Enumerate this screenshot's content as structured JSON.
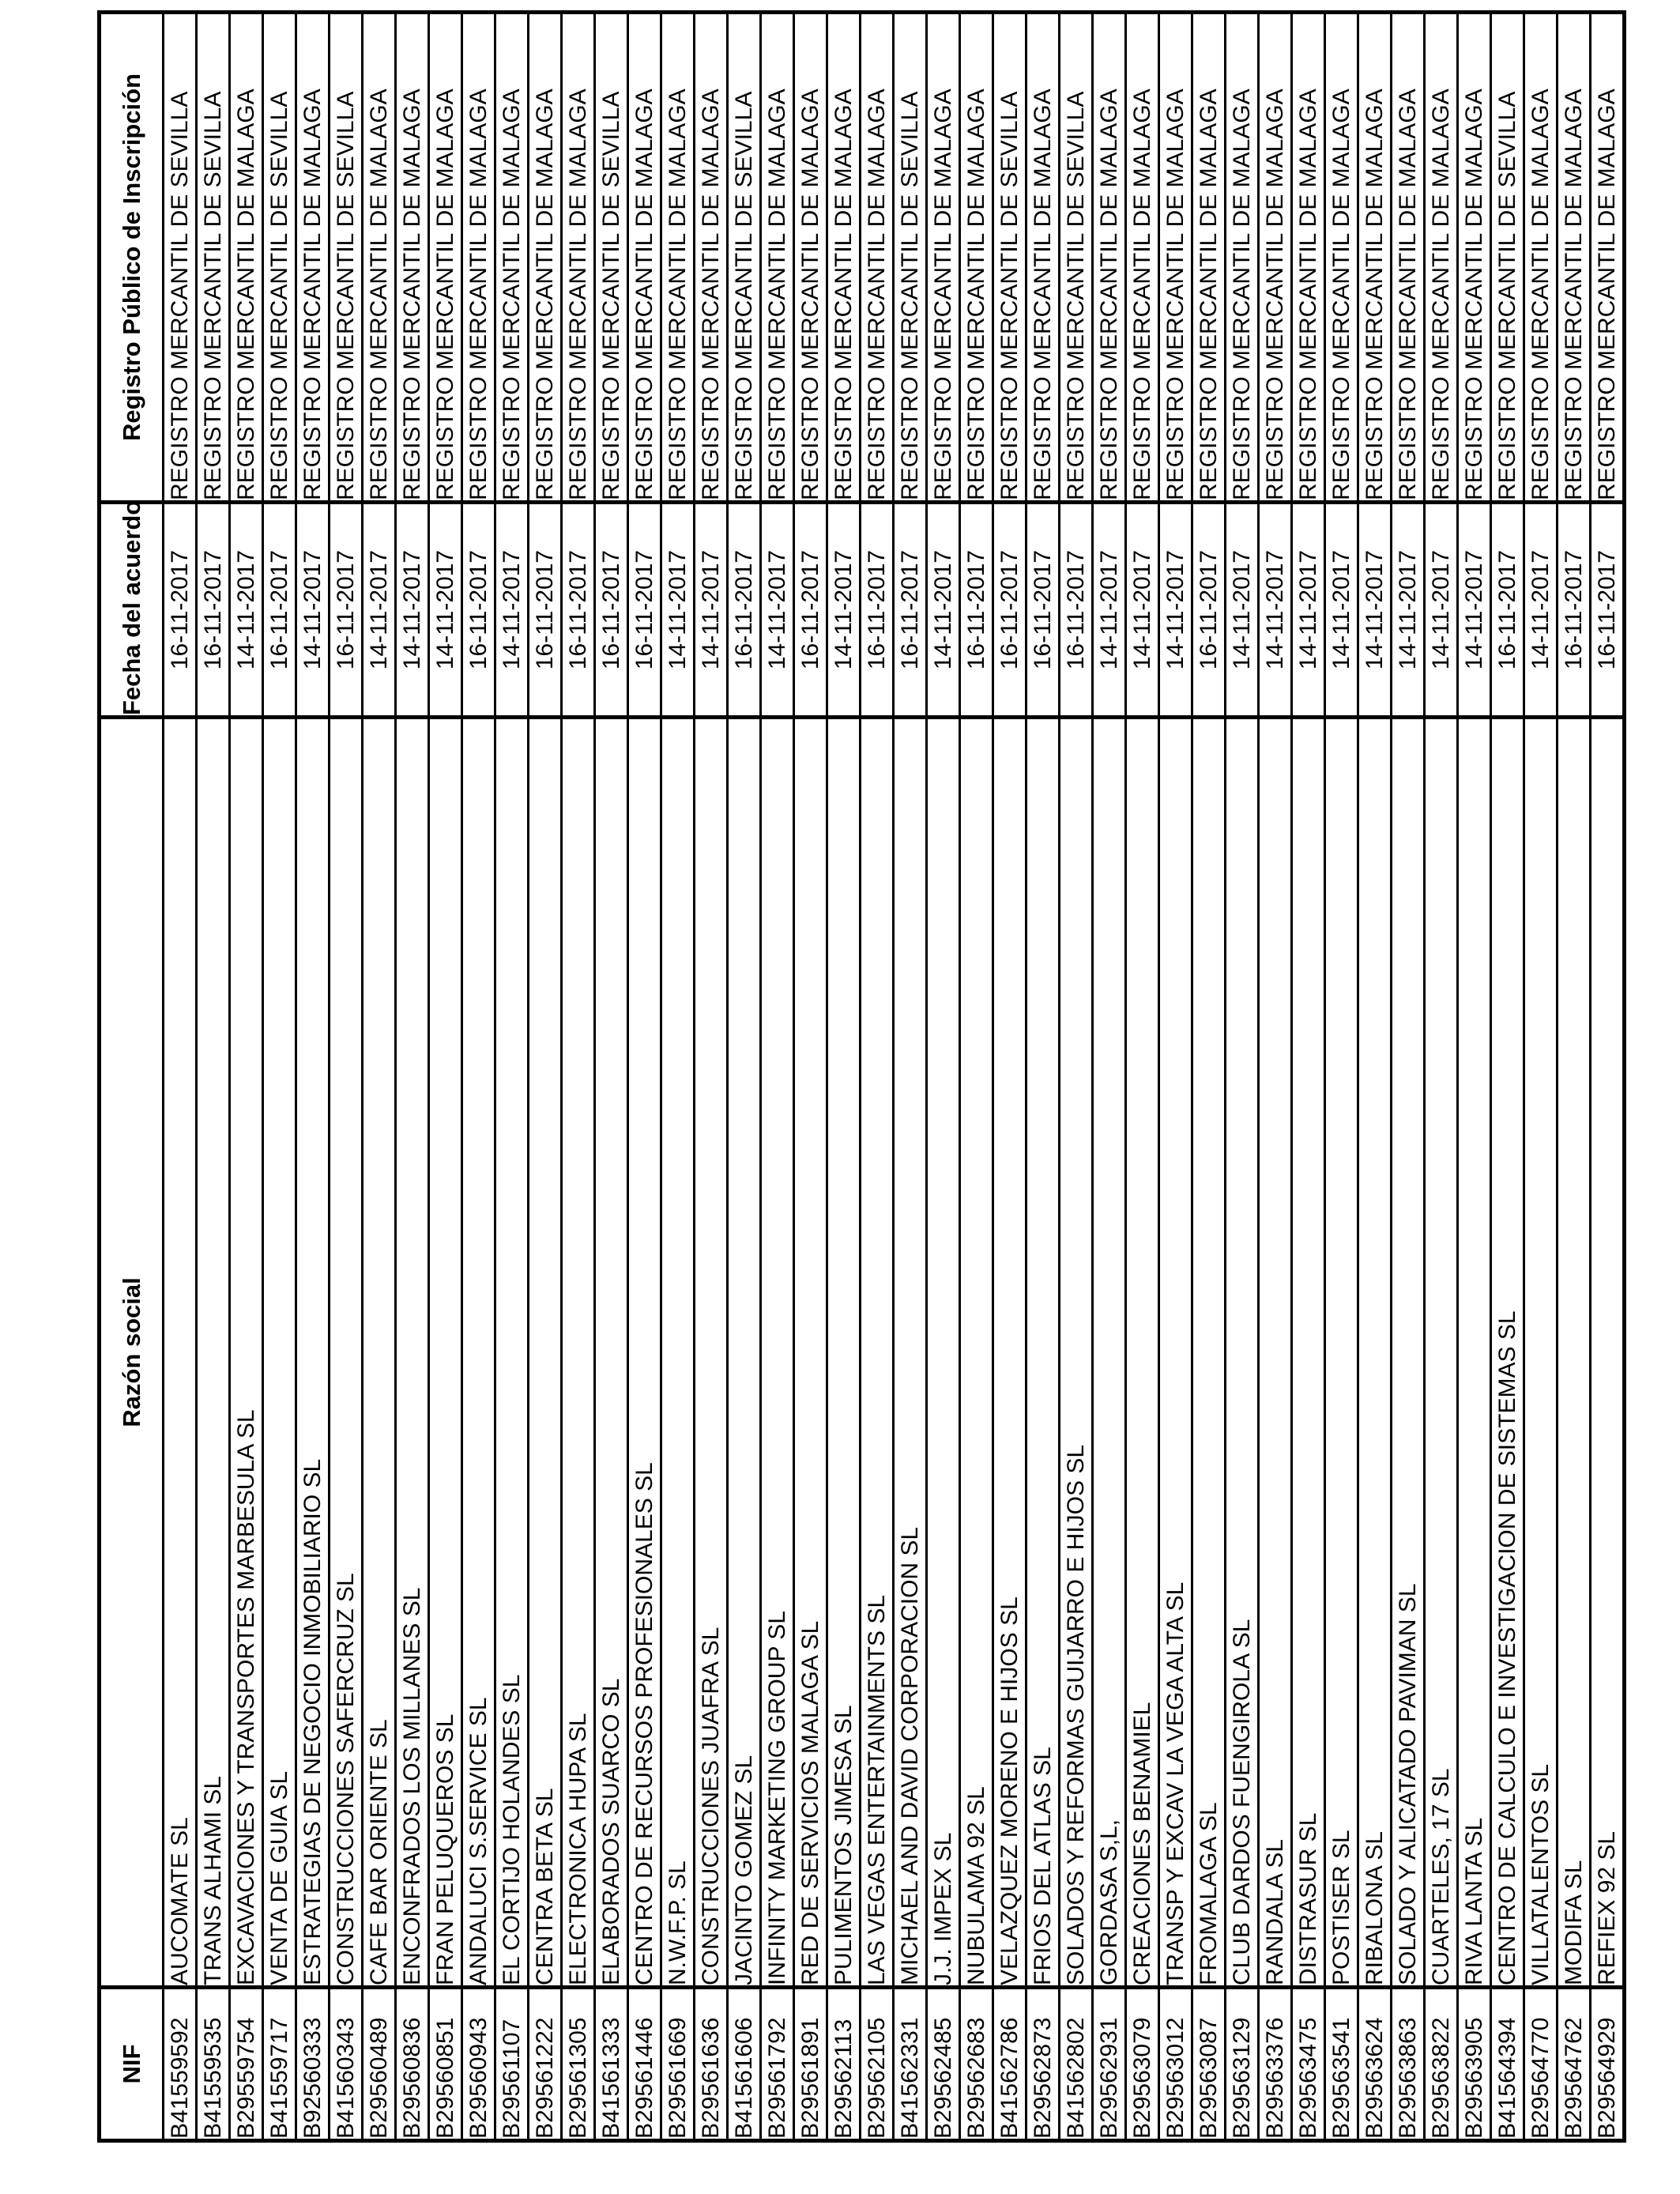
{
  "table": {
    "columns": {
      "nif": "NIF",
      "razon_social": "Razón social",
      "fecha_acuerdo": "Fecha del acuerdo",
      "registro": "Registro Público de Inscripción"
    },
    "records": [
      {
        "nif": "B41559592",
        "razon_social": "AUCOMATE SL",
        "fecha_acuerdo": "16-11-2017",
        "registro": "REGISTRO MERCANTIL DE SEVILLA"
      },
      {
        "nif": "B41559535",
        "razon_social": "TRANS ALHAMI SL",
        "fecha_acuerdo": "16-11-2017",
        "registro": "REGISTRO MERCANTIL DE SEVILLA"
      },
      {
        "nif": "B29559754",
        "razon_social": "EXCAVACIONES Y TRANSPORTES MARBESULA SL",
        "fecha_acuerdo": "14-11-2017",
        "registro": "REGISTRO MERCANTIL DE MALAGA"
      },
      {
        "nif": "B41559717",
        "razon_social": "VENTA DE GUIA SL",
        "fecha_acuerdo": "16-11-2017",
        "registro": "REGISTRO MERCANTIL DE SEVILLA"
      },
      {
        "nif": "B92560333",
        "razon_social": "ESTRATEGIAS DE NEGOCIO INMOBILIARIO SL",
        "fecha_acuerdo": "14-11-2017",
        "registro": "REGISTRO MERCANTIL DE MALAGA"
      },
      {
        "nif": "B41560343",
        "razon_social": "CONSTRUCCIONES SAFERCRUZ SL",
        "fecha_acuerdo": "16-11-2017",
        "registro": "REGISTRO MERCANTIL DE SEVILLA"
      },
      {
        "nif": "B29560489",
        "razon_social": "CAFE BAR ORIENTE SL",
        "fecha_acuerdo": "14-11-2017",
        "registro": "REGISTRO MERCANTIL DE MALAGA"
      },
      {
        "nif": "B29560836",
        "razon_social": "ENCONFRADOS LOS MILLANES SL",
        "fecha_acuerdo": "14-11-2017",
        "registro": "REGISTRO MERCANTIL DE MALAGA"
      },
      {
        "nif": "B29560851",
        "razon_social": "FRAN PELUQUEROS SL",
        "fecha_acuerdo": "14-11-2017",
        "registro": "REGISTRO MERCANTIL DE MALAGA"
      },
      {
        "nif": "B29560943",
        "razon_social": "ANDALUCI S.SERVICE SL",
        "fecha_acuerdo": "16-11-2017",
        "registro": "REGISTRO MERCANTIL DE MALAGA"
      },
      {
        "nif": "B29561107",
        "razon_social": "EL CORTIJO HOLANDES SL",
        "fecha_acuerdo": "14-11-2017",
        "registro": "REGISTRO MERCANTIL DE MALAGA"
      },
      {
        "nif": "B29561222",
        "razon_social": "CENTRA BETA SL",
        "fecha_acuerdo": "16-11-2017",
        "registro": "REGISTRO MERCANTIL DE MALAGA"
      },
      {
        "nif": "B29561305",
        "razon_social": "ELECTRONICA HUPA SL",
        "fecha_acuerdo": "16-11-2017",
        "registro": "REGISTRO MERCANTIL DE MALAGA"
      },
      {
        "nif": "B41561333",
        "razon_social": "ELABORADOS SUARCO SL",
        "fecha_acuerdo": "16-11-2017",
        "registro": "REGISTRO MERCANTIL DE SEVILLA"
      },
      {
        "nif": "B29561446",
        "razon_social": "CENTRO DE RECURSOS PROFESIONALES SL",
        "fecha_acuerdo": "16-11-2017",
        "registro": "REGISTRO MERCANTIL DE MALAGA"
      },
      {
        "nif": "B29561669",
        "razon_social": "N.W.F.P. SL",
        "fecha_acuerdo": "14-11-2017",
        "registro": "REGISTRO MERCANTIL DE MALAGA"
      },
      {
        "nif": "B29561636",
        "razon_social": "CONSTRUCCIONES JUAFRA SL",
        "fecha_acuerdo": "14-11-2017",
        "registro": "REGISTRO MERCANTIL DE MALAGA"
      },
      {
        "nif": "B41561606",
        "razon_social": "JACINTO GOMEZ SL",
        "fecha_acuerdo": "16-11-2017",
        "registro": "REGISTRO MERCANTIL DE SEVILLA"
      },
      {
        "nif": "B29561792",
        "razon_social": "INFINITY MARKETING GROUP SL",
        "fecha_acuerdo": "14-11-2017",
        "registro": "REGISTRO MERCANTIL DE MALAGA"
      },
      {
        "nif": "B29561891",
        "razon_social": "RED DE SERVICIOS MALAGA SL",
        "fecha_acuerdo": "16-11-2017",
        "registro": "REGISTRO MERCANTIL DE MALAGA"
      },
      {
        "nif": "B29562113",
        "razon_social": "PULIMENTOS JIMESA SL",
        "fecha_acuerdo": "14-11-2017",
        "registro": "REGISTRO MERCANTIL DE MALAGA"
      },
      {
        "nif": "B29562105",
        "razon_social": "LAS VEGAS ENTERTAINMENTS SL",
        "fecha_acuerdo": "16-11-2017",
        "registro": "REGISTRO MERCANTIL DE MALAGA"
      },
      {
        "nif": "B41562331",
        "razon_social": "MICHAEL AND DAVID CORPORACION SL",
        "fecha_acuerdo": "16-11-2017",
        "registro": "REGISTRO MERCANTIL DE SEVILLA"
      },
      {
        "nif": "B29562485",
        "razon_social": "J.J. IMPEX SL",
        "fecha_acuerdo": "14-11-2017",
        "registro": "REGISTRO MERCANTIL DE MALAGA"
      },
      {
        "nif": "B29562683",
        "razon_social": "NUBULAMA 92 SL",
        "fecha_acuerdo": "16-11-2017",
        "registro": "REGISTRO MERCANTIL DE MALAGA"
      },
      {
        "nif": "B41562786",
        "razon_social": "VELAZQUEZ MORENO E HIJOS SL",
        "fecha_acuerdo": "16-11-2017",
        "registro": "REGISTRO MERCANTIL DE SEVILLA"
      },
      {
        "nif": "B29562873",
        "razon_social": "FRIOS DEL ATLAS SL",
        "fecha_acuerdo": "16-11-2017",
        "registro": "REGISTRO MERCANTIL DE MALAGA"
      },
      {
        "nif": "B41562802",
        "razon_social": "SOLADOS Y REFORMAS GUIJARRO E HIJOS SL",
        "fecha_acuerdo": "16-11-2017",
        "registro": "REGISTRO MERCANTIL DE SEVILLA"
      },
      {
        "nif": "B29562931",
        "razon_social": "GORDASA S,L,",
        "fecha_acuerdo": "14-11-2017",
        "registro": "REGISTRO MERCANTIL DE MALAGA"
      },
      {
        "nif": "B29563079",
        "razon_social": "CREACIONES BENAMIEL",
        "fecha_acuerdo": "14-11-2017",
        "registro": "REGISTRO MERCANTIL DE MALAGA"
      },
      {
        "nif": "B29563012",
        "razon_social": "TRANSP Y EXCAV LA VEGA ALTA SL",
        "fecha_acuerdo": "14-11-2017",
        "registro": "REGISTRO MERCANTIL DE MALAGA"
      },
      {
        "nif": "B29563087",
        "razon_social": "FROMALAGA SL",
        "fecha_acuerdo": "16-11-2017",
        "registro": "REGISTRO MERCANTIL DE MALAGA"
      },
      {
        "nif": "B29563129",
        "razon_social": "CLUB DARDOS FUENGIROLA SL",
        "fecha_acuerdo": "14-11-2017",
        "registro": "REGISTRO MERCANTIL DE MALAGA"
      },
      {
        "nif": "B29563376",
        "razon_social": "RANDALA SL",
        "fecha_acuerdo": "14-11-2017",
        "registro": "REGISTRO MERCANTIL DE MALAGA"
      },
      {
        "nif": "B29563475",
        "razon_social": "DISTRASUR SL",
        "fecha_acuerdo": "14-11-2017",
        "registro": "REGISTRO MERCANTIL DE MALAGA"
      },
      {
        "nif": "B29563541",
        "razon_social": "POSTISER SL",
        "fecha_acuerdo": "14-11-2017",
        "registro": "REGISTRO MERCANTIL DE MALAGA"
      },
      {
        "nif": "B29563624",
        "razon_social": "RIBALONA SL",
        "fecha_acuerdo": "14-11-2017",
        "registro": "REGISTRO MERCANTIL DE MALAGA"
      },
      {
        "nif": "B29563863",
        "razon_social": "SOLADO Y ALICATADO PAVIMAN SL",
        "fecha_acuerdo": "14-11-2017",
        "registro": "REGISTRO MERCANTIL DE MALAGA"
      },
      {
        "nif": "B29563822",
        "razon_social": "CUARTELES, 17 SL",
        "fecha_acuerdo": "14-11-2017",
        "registro": "REGISTRO MERCANTIL DE MALAGA"
      },
      {
        "nif": "B29563905",
        "razon_social": "RIVA LANTA SL",
        "fecha_acuerdo": "14-11-2017",
        "registro": "REGISTRO MERCANTIL DE MALAGA"
      },
      {
        "nif": "B41564394",
        "razon_social": "CENTRO DE CALCULO E INVESTIGACION DE SISTEMAS SL",
        "fecha_acuerdo": "16-11-2017",
        "registro": "REGISTRO MERCANTIL DE SEVILLA"
      },
      {
        "nif": "B29564770",
        "razon_social": "VILLATALENTOS SL",
        "fecha_acuerdo": "14-11-2017",
        "registro": "REGISTRO MERCANTIL DE MALAGA"
      },
      {
        "nif": "B29564762",
        "razon_social": "MODIFA SL",
        "fecha_acuerdo": "16-11-2017",
        "registro": "REGISTRO MERCANTIL DE MALAGA"
      },
      {
        "nif": "B29564929",
        "razon_social": "REFIEX 92 SL",
        "fecha_acuerdo": "16-11-2017",
        "registro": "REGISTRO MERCANTIL DE MALAGA"
      }
    ]
  }
}
